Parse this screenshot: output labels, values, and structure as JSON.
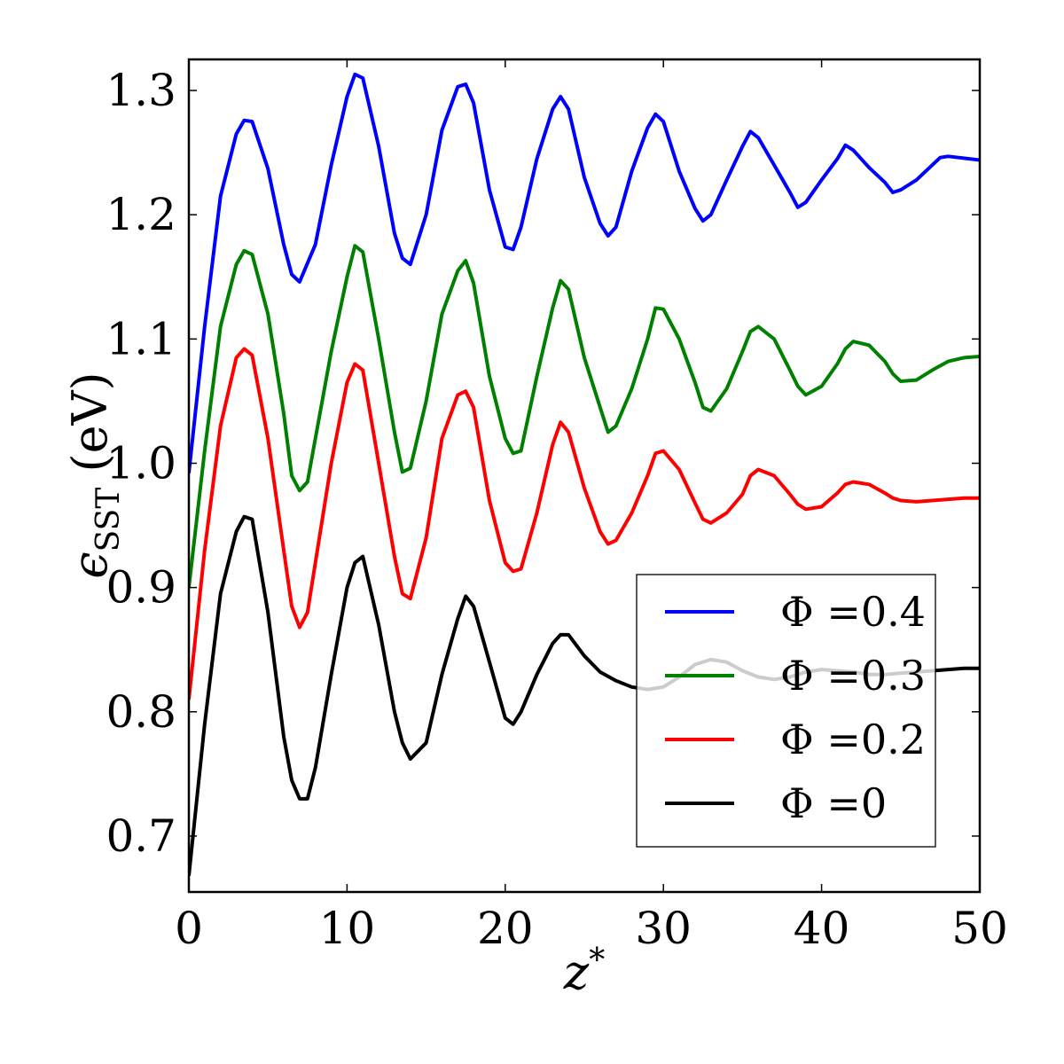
{
  "chart_data": {
    "type": "line",
    "xlabel": "z*",
    "ylabel": "ϵSST (eV)",
    "xlim": [
      0,
      50
    ],
    "ylim": [
      0.655,
      1.325
    ],
    "x_ticks": [
      0,
      10,
      20,
      30,
      40,
      50
    ],
    "x_tick_labels": [
      "0",
      "10",
      "20",
      "30",
      "40",
      "50"
    ],
    "y_ticks": [
      0.7,
      0.8,
      0.9,
      1.0,
      1.1,
      1.2,
      1.3
    ],
    "y_tick_labels": [
      "0.7",
      "0.8",
      "0.9",
      "1.0",
      "1.1",
      "1.2",
      "1.3"
    ],
    "grid": false,
    "legend_position": "lower-right",
    "series": [
      {
        "name": "Φ = 0.4",
        "legend_label": "Φ =0.4",
        "color": "#0000ff",
        "points": [
          [
            0,
            0.992
          ],
          [
            1,
            1.11
          ],
          [
            2,
            1.215
          ],
          [
            3,
            1.265
          ],
          [
            3.5,
            1.276
          ],
          [
            4,
            1.275
          ],
          [
            5,
            1.237
          ],
          [
            6,
            1.176
          ],
          [
            6.5,
            1.152
          ],
          [
            7,
            1.146
          ],
          [
            8,
            1.176
          ],
          [
            9,
            1.24
          ],
          [
            10,
            1.295
          ],
          [
            10.5,
            1.313
          ],
          [
            11,
            1.31
          ],
          [
            12,
            1.255
          ],
          [
            13,
            1.185
          ],
          [
            13.5,
            1.165
          ],
          [
            14,
            1.16
          ],
          [
            15,
            1.2
          ],
          [
            16,
            1.268
          ],
          [
            17,
            1.303
          ],
          [
            17.5,
            1.305
          ],
          [
            18,
            1.29
          ],
          [
            19,
            1.22
          ],
          [
            20,
            1.174
          ],
          [
            20.5,
            1.172
          ],
          [
            21,
            1.19
          ],
          [
            22,
            1.245
          ],
          [
            23,
            1.285
          ],
          [
            23.5,
            1.295
          ],
          [
            24,
            1.285
          ],
          [
            25,
            1.23
          ],
          [
            26,
            1.193
          ],
          [
            26.5,
            1.183
          ],
          [
            27,
            1.19
          ],
          [
            28,
            1.235
          ],
          [
            29,
            1.27
          ],
          [
            29.5,
            1.281
          ],
          [
            30,
            1.275
          ],
          [
            31,
            1.235
          ],
          [
            32,
            1.205
          ],
          [
            32.5,
            1.195
          ],
          [
            33,
            1.2
          ],
          [
            34,
            1.228
          ],
          [
            35,
            1.255
          ],
          [
            35.5,
            1.267
          ],
          [
            36,
            1.262
          ],
          [
            37,
            1.24
          ],
          [
            38,
            1.218
          ],
          [
            38.5,
            1.206
          ],
          [
            39,
            1.21
          ],
          [
            40,
            1.228
          ],
          [
            41,
            1.245
          ],
          [
            41.5,
            1.256
          ],
          [
            42,
            1.252
          ],
          [
            43,
            1.238
          ],
          [
            44,
            1.226
          ],
          [
            44.5,
            1.218
          ],
          [
            45,
            1.22
          ],
          [
            46,
            1.228
          ],
          [
            47,
            1.24
          ],
          [
            47.5,
            1.246
          ],
          [
            48,
            1.247
          ],
          [
            50,
            1.244
          ]
        ]
      },
      {
        "name": "Φ = 0.3",
        "legend_label": "Φ =0.3",
        "color": "#008000",
        "points": [
          [
            0,
            0.9
          ],
          [
            1,
            1.01
          ],
          [
            2,
            1.11
          ],
          [
            3,
            1.16
          ],
          [
            3.5,
            1.171
          ],
          [
            4,
            1.168
          ],
          [
            5,
            1.12
          ],
          [
            6,
            1.04
          ],
          [
            6.5,
            0.99
          ],
          [
            7,
            0.978
          ],
          [
            7.5,
            0.985
          ],
          [
            8,
            1.02
          ],
          [
            9,
            1.09
          ],
          [
            10,
            1.15
          ],
          [
            10.5,
            1.175
          ],
          [
            11,
            1.17
          ],
          [
            12,
            1.1
          ],
          [
            13,
            1.025
          ],
          [
            13.5,
            0.993
          ],
          [
            14,
            0.996
          ],
          [
            15,
            1.05
          ],
          [
            16,
            1.12
          ],
          [
            17,
            1.155
          ],
          [
            17.5,
            1.163
          ],
          [
            18,
            1.145
          ],
          [
            19,
            1.07
          ],
          [
            20,
            1.02
          ],
          [
            20.5,
            1.008
          ],
          [
            21,
            1.01
          ],
          [
            22,
            1.07
          ],
          [
            23,
            1.125
          ],
          [
            23.5,
            1.147
          ],
          [
            24,
            1.14
          ],
          [
            25,
            1.085
          ],
          [
            26,
            1.045
          ],
          [
            26.5,
            1.025
          ],
          [
            27,
            1.03
          ],
          [
            28,
            1.06
          ],
          [
            29,
            1.1
          ],
          [
            29.5,
            1.125
          ],
          [
            30,
            1.124
          ],
          [
            31,
            1.1
          ],
          [
            32,
            1.065
          ],
          [
            32.5,
            1.045
          ],
          [
            33,
            1.042
          ],
          [
            34,
            1.06
          ],
          [
            35,
            1.09
          ],
          [
            35.5,
            1.106
          ],
          [
            36,
            1.11
          ],
          [
            37,
            1.1
          ],
          [
            38,
            1.075
          ],
          [
            38.5,
            1.062
          ],
          [
            39,
            1.055
          ],
          [
            40,
            1.062
          ],
          [
            41,
            1.08
          ],
          [
            41.5,
            1.092
          ],
          [
            42,
            1.098
          ],
          [
            43,
            1.095
          ],
          [
            44,
            1.082
          ],
          [
            44.5,
            1.072
          ],
          [
            45,
            1.066
          ],
          [
            46,
            1.067
          ],
          [
            47,
            1.075
          ],
          [
            48,
            1.082
          ],
          [
            49,
            1.085
          ],
          [
            50,
            1.086
          ]
        ]
      },
      {
        "name": "Φ = 0.2",
        "legend_label": "Φ =0.2",
        "color": "#ff0000",
        "points": [
          [
            0,
            0.81
          ],
          [
            1,
            0.93
          ],
          [
            2,
            1.03
          ],
          [
            3,
            1.085
          ],
          [
            3.5,
            1.092
          ],
          [
            4,
            1.087
          ],
          [
            5,
            1.02
          ],
          [
            6,
            0.93
          ],
          [
            6.5,
            0.885
          ],
          [
            7,
            0.868
          ],
          [
            7.5,
            0.88
          ],
          [
            8,
            0.92
          ],
          [
            9,
            1.0
          ],
          [
            10,
            1.065
          ],
          [
            10.5,
            1.08
          ],
          [
            11,
            1.075
          ],
          [
            12,
            1.0
          ],
          [
            13,
            0.925
          ],
          [
            13.5,
            0.895
          ],
          [
            14,
            0.891
          ],
          [
            15,
            0.94
          ],
          [
            16,
            1.02
          ],
          [
            17,
            1.055
          ],
          [
            17.5,
            1.058
          ],
          [
            18,
            1.045
          ],
          [
            19,
            0.97
          ],
          [
            20,
            0.92
          ],
          [
            20.5,
            0.913
          ],
          [
            21,
            0.915
          ],
          [
            22,
            0.96
          ],
          [
            23,
            1.015
          ],
          [
            23.5,
            1.033
          ],
          [
            24,
            1.025
          ],
          [
            25,
            0.98
          ],
          [
            26,
            0.945
          ],
          [
            26.5,
            0.935
          ],
          [
            27,
            0.938
          ],
          [
            28,
            0.96
          ],
          [
            29,
            0.99
          ],
          [
            29.5,
            1.008
          ],
          [
            30,
            1.01
          ],
          [
            31,
            0.995
          ],
          [
            32,
            0.968
          ],
          [
            32.5,
            0.955
          ],
          [
            33,
            0.952
          ],
          [
            34,
            0.96
          ],
          [
            35,
            0.975
          ],
          [
            35.5,
            0.99
          ],
          [
            36,
            0.995
          ],
          [
            37,
            0.99
          ],
          [
            38,
            0.975
          ],
          [
            38.5,
            0.967
          ],
          [
            39,
            0.963
          ],
          [
            40,
            0.965
          ],
          [
            41,
            0.976
          ],
          [
            41.5,
            0.983
          ],
          [
            42,
            0.985
          ],
          [
            43,
            0.983
          ],
          [
            44,
            0.976
          ],
          [
            44.5,
            0.972
          ],
          [
            45,
            0.97
          ],
          [
            46,
            0.969
          ],
          [
            47,
            0.97
          ],
          [
            48,
            0.971
          ],
          [
            49,
            0.972
          ],
          [
            50,
            0.972
          ]
        ]
      },
      {
        "name": "Φ = 0",
        "legend_label": "Φ =0",
        "color": "#000000",
        "points": [
          [
            0,
            0.668
          ],
          [
            1,
            0.79
          ],
          [
            2,
            0.895
          ],
          [
            3,
            0.945
          ],
          [
            3.5,
            0.957
          ],
          [
            4,
            0.955
          ],
          [
            5,
            0.88
          ],
          [
            6,
            0.78
          ],
          [
            6.5,
            0.745
          ],
          [
            7,
            0.73
          ],
          [
            7.5,
            0.73
          ],
          [
            8,
            0.755
          ],
          [
            9,
            0.83
          ],
          [
            10,
            0.9
          ],
          [
            10.5,
            0.92
          ],
          [
            11,
            0.925
          ],
          [
            12,
            0.87
          ],
          [
            13,
            0.8
          ],
          [
            13.5,
            0.775
          ],
          [
            14,
            0.762
          ],
          [
            15,
            0.775
          ],
          [
            16,
            0.83
          ],
          [
            17,
            0.875
          ],
          [
            17.5,
            0.893
          ],
          [
            18,
            0.885
          ],
          [
            19,
            0.84
          ],
          [
            20,
            0.795
          ],
          [
            20.5,
            0.79
          ],
          [
            21,
            0.8
          ],
          [
            22,
            0.83
          ],
          [
            23,
            0.855
          ],
          [
            23.5,
            0.862
          ],
          [
            24,
            0.862
          ],
          [
            25,
            0.845
          ],
          [
            26,
            0.832
          ],
          [
            27,
            0.825
          ],
          [
            28,
            0.82
          ],
          [
            29,
            0.818
          ],
          [
            30,
            0.82
          ],
          [
            31,
            0.828
          ],
          [
            32,
            0.838
          ],
          [
            33,
            0.842
          ],
          [
            34,
            0.84
          ],
          [
            35,
            0.833
          ],
          [
            36,
            0.828
          ],
          [
            37,
            0.826
          ],
          [
            38,
            0.828
          ],
          [
            39,
            0.832
          ],
          [
            40,
            0.834
          ],
          [
            41,
            0.833
          ],
          [
            42,
            0.832
          ],
          [
            43,
            0.83
          ],
          [
            44,
            0.83
          ],
          [
            45,
            0.831
          ],
          [
            46,
            0.832
          ],
          [
            47,
            0.833
          ],
          [
            48,
            0.834
          ],
          [
            49,
            0.835
          ],
          [
            50,
            0.835
          ]
        ]
      }
    ]
  }
}
